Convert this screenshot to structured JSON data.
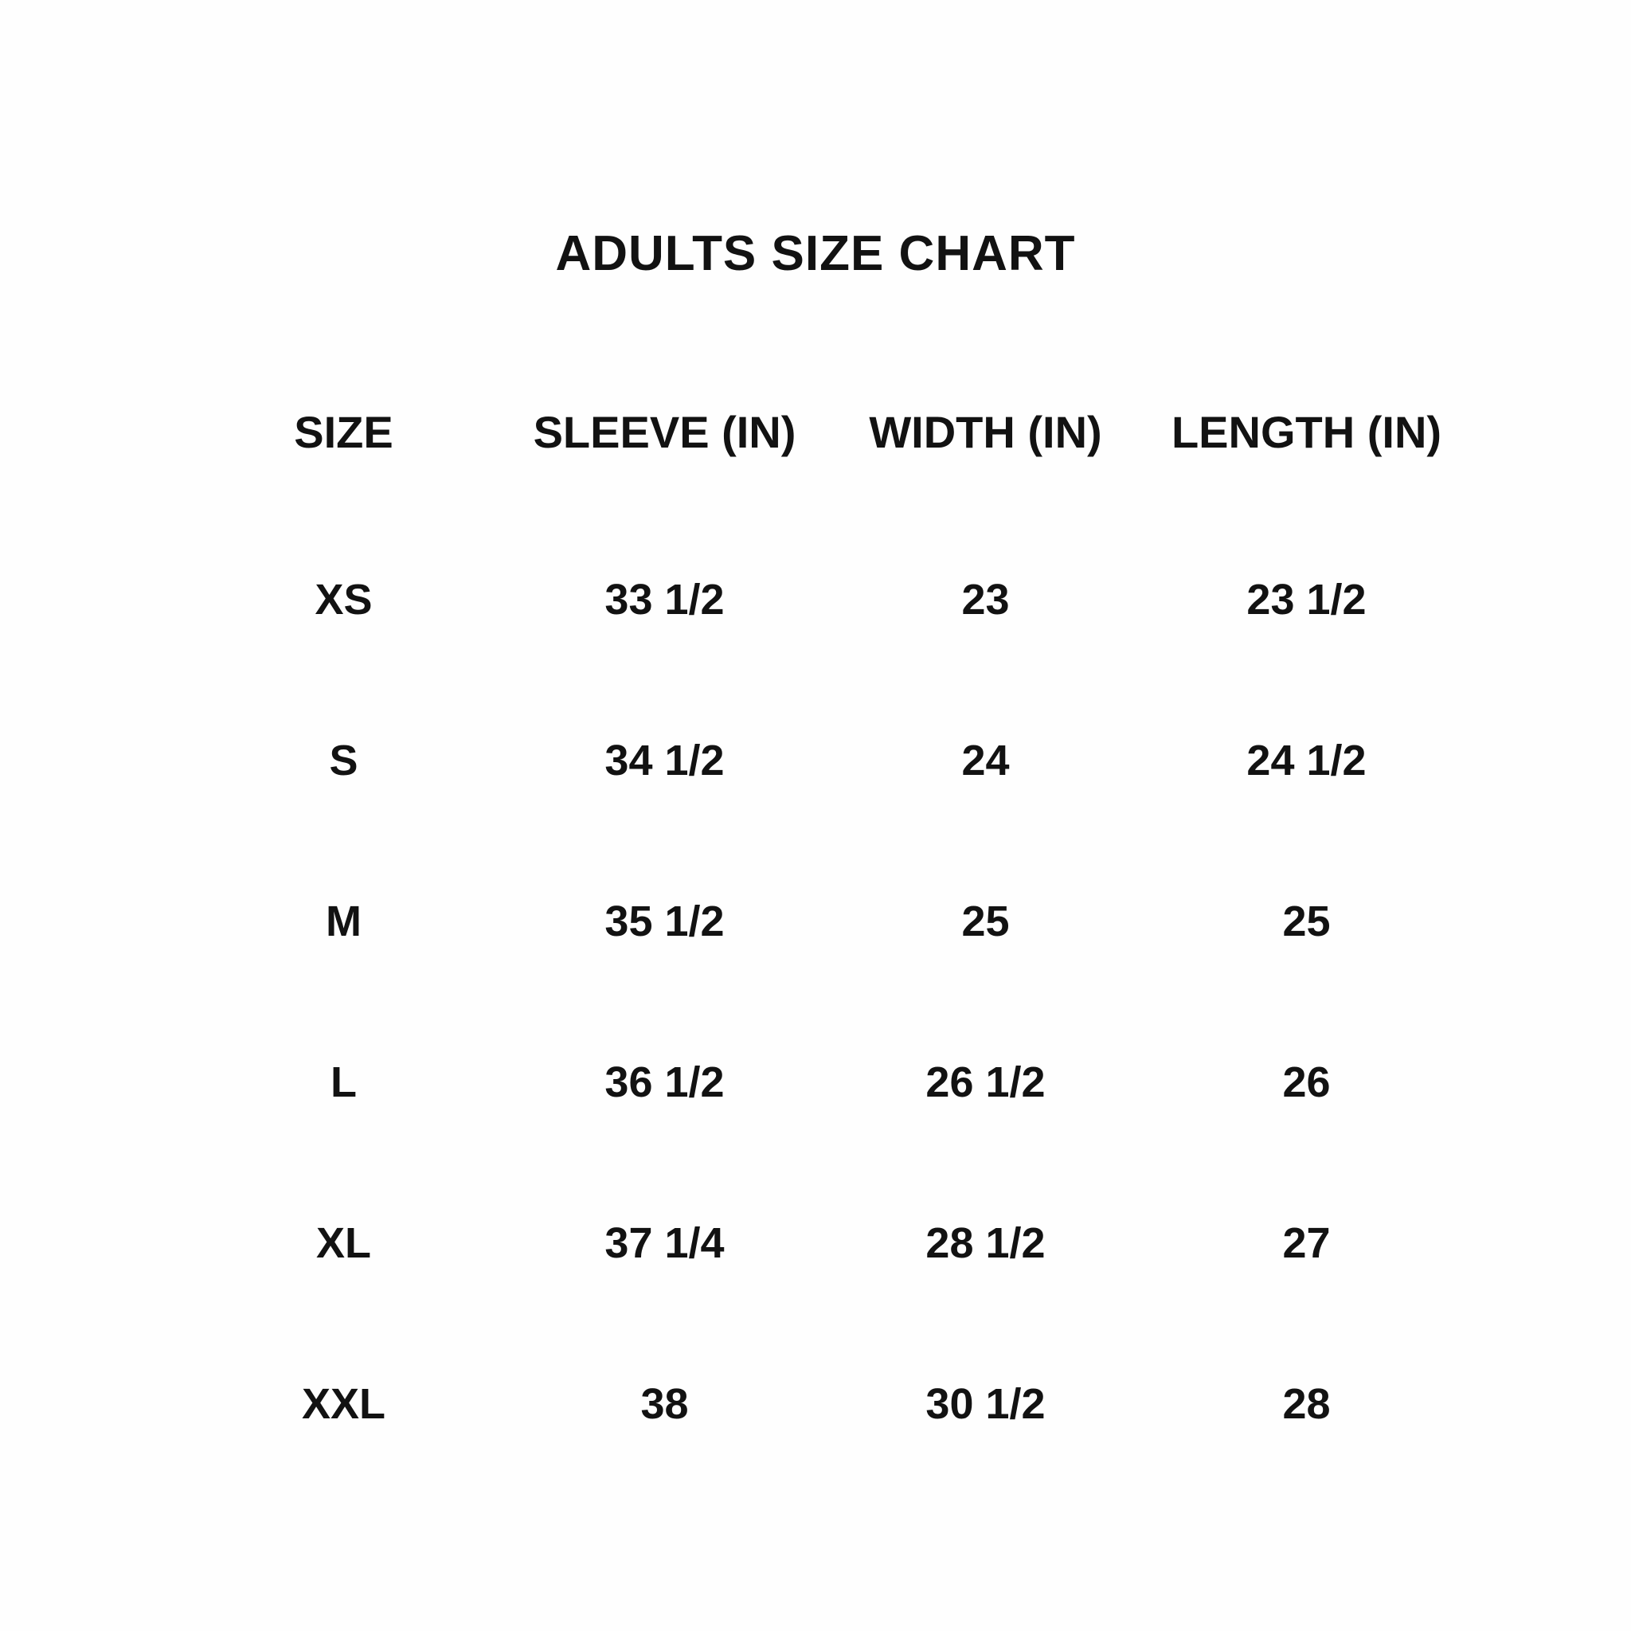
{
  "title": "ADULTS SIZE CHART",
  "table": {
    "headers": [
      "SIZE",
      "SLEEVE (IN)",
      "WIDTH (IN)",
      "LENGTH (IN)"
    ],
    "rows": [
      {
        "size": "XS",
        "sleeve": "33 1/2",
        "width": "23",
        "length": "23 1/2"
      },
      {
        "size": "S",
        "sleeve": "34 1/2",
        "width": "24",
        "length": "24 1/2"
      },
      {
        "size": "M",
        "sleeve": "35 1/2",
        "width": "25",
        "length": "25"
      },
      {
        "size": "L",
        "sleeve": "36 1/2",
        "width": "26 1/2",
        "length": "26"
      },
      {
        "size": "XL",
        "sleeve": "37 1/4",
        "width": "28 1/2",
        "length": "27"
      },
      {
        "size": "XXL",
        "sleeve": "38",
        "width": "30 1/2",
        "length": "28"
      }
    ]
  },
  "colors": {
    "text": "#121212",
    "background": "#fefefe"
  },
  "chart_data": {
    "type": "table",
    "title": "ADULTS SIZE CHART",
    "columns": [
      "SIZE",
      "SLEEVE (IN)",
      "WIDTH (IN)",
      "LENGTH (IN)"
    ],
    "rows": [
      [
        "XS",
        "33 1/2",
        "23",
        "23 1/2"
      ],
      [
        "S",
        "34 1/2",
        "24",
        "24 1/2"
      ],
      [
        "M",
        "35 1/2",
        "25",
        "25"
      ],
      [
        "L",
        "36 1/2",
        "26 1/2",
        "26"
      ],
      [
        "XL",
        "37 1/4",
        "28 1/2",
        "27"
      ],
      [
        "XXL",
        "38",
        "30 1/2",
        "28"
      ]
    ]
  }
}
